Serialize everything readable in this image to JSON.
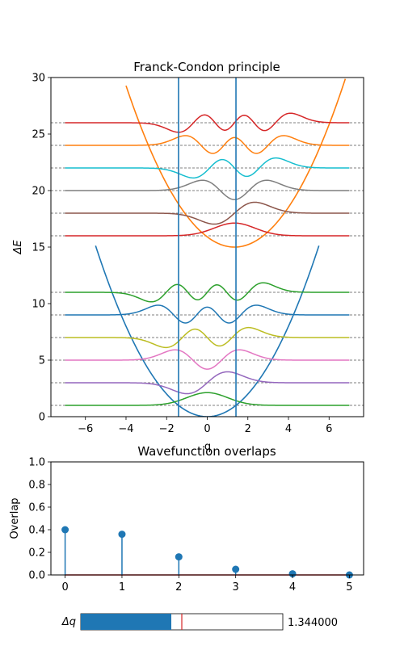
{
  "colors": {
    "blue": "#1f77b4",
    "orange": "#ff7f0e",
    "green": "#2ca02c",
    "red": "#d62728",
    "purple": "#9467bd",
    "brown": "#8c564b",
    "pink": "#e377c2",
    "gray": "#7f7f7f",
    "olive": "#bcbd22",
    "cyan": "#17becf",
    "slider_line": "#d62728"
  },
  "chart_data": [
    {
      "type": "line",
      "title": "Franck-Condon principle",
      "xlabel": "q",
      "ylabel": "ΔE",
      "xlim": [
        -7.7,
        7.7
      ],
      "ylim": [
        0,
        30
      ],
      "xticks": [
        -6,
        -4,
        -2,
        0,
        2,
        4,
        6
      ],
      "xtick_labels": [
        "−6",
        "−4",
        "−2",
        "0",
        "2",
        "4",
        "6"
      ],
      "yticks": [
        0,
        5,
        10,
        15,
        20,
        25,
        30
      ],
      "ytick_labels": [
        "0",
        "5",
        "10",
        "15",
        "20",
        "25",
        "30"
      ],
      "ground_potential": {
        "center": 0,
        "curvature": 0.5,
        "x_range": [
          -5.5,
          5.5
        ],
        "color": "blue"
      },
      "excited_potential": {
        "center": 1.344,
        "offset": 15,
        "curvature": 0.5,
        "x_range": [
          -4.0,
          6.8
        ],
        "color": "orange"
      },
      "turning_points": [
        -1.414,
        1.414
      ],
      "turning_point_color": "blue",
      "ground_levels": [
        {
          "n": 0,
          "energy": 1,
          "color": "green"
        },
        {
          "n": 1,
          "energy": 3,
          "color": "purple"
        },
        {
          "n": 2,
          "energy": 5,
          "color": "pink"
        },
        {
          "n": 3,
          "energy": 7,
          "color": "olive"
        },
        {
          "n": 4,
          "energy": 9,
          "color": "blue"
        },
        {
          "n": 5,
          "energy": 11,
          "color": "green"
        }
      ],
      "excited_levels": [
        {
          "n": 0,
          "energy": 16,
          "color": "red"
        },
        {
          "n": 1,
          "energy": 18,
          "color": "brown"
        },
        {
          "n": 2,
          "energy": 20,
          "color": "gray"
        },
        {
          "n": 3,
          "energy": 22,
          "color": "cyan"
        },
        {
          "n": 4,
          "energy": 24,
          "color": "orange"
        },
        {
          "n": 5,
          "energy": 26,
          "color": "red"
        }
      ],
      "wavefunction_x_range": [
        -7,
        7
      ],
      "level_lines_dashed": true
    },
    {
      "type": "stem",
      "title": "Wavefunction overlaps",
      "xlabel": "",
      "ylabel": "Overlap",
      "x": [
        0,
        1,
        2,
        3,
        4,
        5
      ],
      "values": [
        0.4,
        0.36,
        0.16,
        0.05,
        0.01,
        0.0
      ],
      "xlim": [
        -0.25,
        5.25
      ],
      "ylim": [
        0,
        1
      ],
      "xticks": [
        0,
        1,
        2,
        3,
        4,
        5
      ],
      "xtick_labels": [
        "0",
        "1",
        "2",
        "3",
        "4",
        "5"
      ],
      "yticks": [
        0,
        0.2,
        0.4,
        0.6,
        0.8,
        1.0
      ],
      "ytick_labels": [
        "0.0",
        "0.2",
        "0.4",
        "0.6",
        "0.8",
        "1.0"
      ],
      "color": "blue",
      "baseline_color": "red"
    }
  ],
  "slider": {
    "label": "Δq",
    "value": 1.344,
    "value_text": "1.344000",
    "min": 0,
    "max": 3,
    "initial": 1.5
  }
}
